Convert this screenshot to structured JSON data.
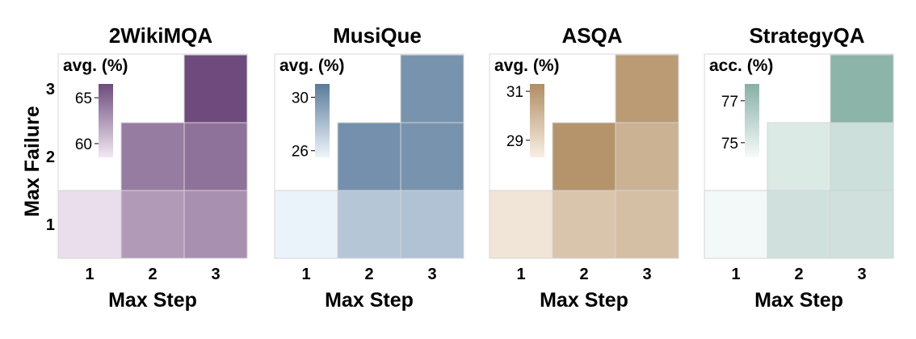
{
  "chart_data": [
    {
      "type": "heatmap",
      "title": "2WikiMQA",
      "colorbar_label": "avg. (%)",
      "colorbar_ticks": [
        "65",
        "60"
      ],
      "colorbar_tick_values": [
        65,
        60
      ],
      "colorbar_range": [
        58.5,
        66.5
      ],
      "xlabel": "Max Step",
      "ylabel": "Max Failure",
      "x": [
        "1",
        "2",
        "3"
      ],
      "y": [
        "1",
        "2",
        "3"
      ],
      "values": [
        [
          59.0,
          62.5,
          63.0
        ],
        [
          null,
          64.0,
          64.5
        ],
        [
          null,
          null,
          66.5
        ]
      ],
      "colors": {
        "low": "#f2e8f3",
        "high": "#6e4b7c"
      }
    },
    {
      "type": "heatmap",
      "title": "MusiQue",
      "colorbar_label": "avg. (%)",
      "colorbar_ticks": [
        "30",
        "26"
      ],
      "colorbar_tick_values": [
        30,
        26
      ],
      "colorbar_range": [
        25.5,
        31.0
      ],
      "xlabel": "Max Step",
      "ylabel": "",
      "x": [
        "1",
        "2",
        "3"
      ],
      "y": [
        "1",
        "2",
        "3"
      ],
      "values": [
        [
          25.6,
          27.6,
          27.8
        ],
        [
          null,
          30.0,
          29.9
        ],
        [
          null,
          null,
          29.9
        ]
      ],
      "colors": {
        "low": "#eef5fc",
        "high": "#5a7a9b"
      }
    },
    {
      "type": "heatmap",
      "title": "ASQA",
      "colorbar_label": "avg. (%)",
      "colorbar_ticks": [
        "31",
        "29"
      ],
      "colorbar_tick_values": [
        31,
        29
      ],
      "colorbar_range": [
        28.3,
        31.3
      ],
      "xlabel": "Max Step",
      "ylabel": "",
      "x": [
        "1",
        "2",
        "3"
      ],
      "y": [
        "1",
        "2",
        "3"
      ],
      "values": [
        [
          28.6,
          29.6,
          29.8
        ],
        [
          null,
          31.1,
          30.2
        ],
        [
          null,
          null,
          30.9
        ]
      ],
      "colors": {
        "low": "#f8efe4",
        "high": "#b08e63"
      }
    },
    {
      "type": "heatmap",
      "title": "StrategyQA",
      "colorbar_label": "acc. (%)",
      "colorbar_ticks": [
        "77",
        "75"
      ],
      "colorbar_tick_values": [
        77,
        75
      ],
      "colorbar_range": [
        74.3,
        77.8
      ],
      "xlabel": "Max Step",
      "ylabel": "",
      "x": [
        "1",
        "2",
        "3"
      ],
      "y": [
        "1",
        "2",
        "3"
      ],
      "values": [
        [
          74.4,
          75.5,
          75.5
        ],
        [
          null,
          75.1,
          75.6
        ],
        [
          null,
          null,
          77.6
        ]
      ],
      "colors": {
        "low": "#f6fbfa",
        "high": "#86b0a4"
      }
    }
  ]
}
